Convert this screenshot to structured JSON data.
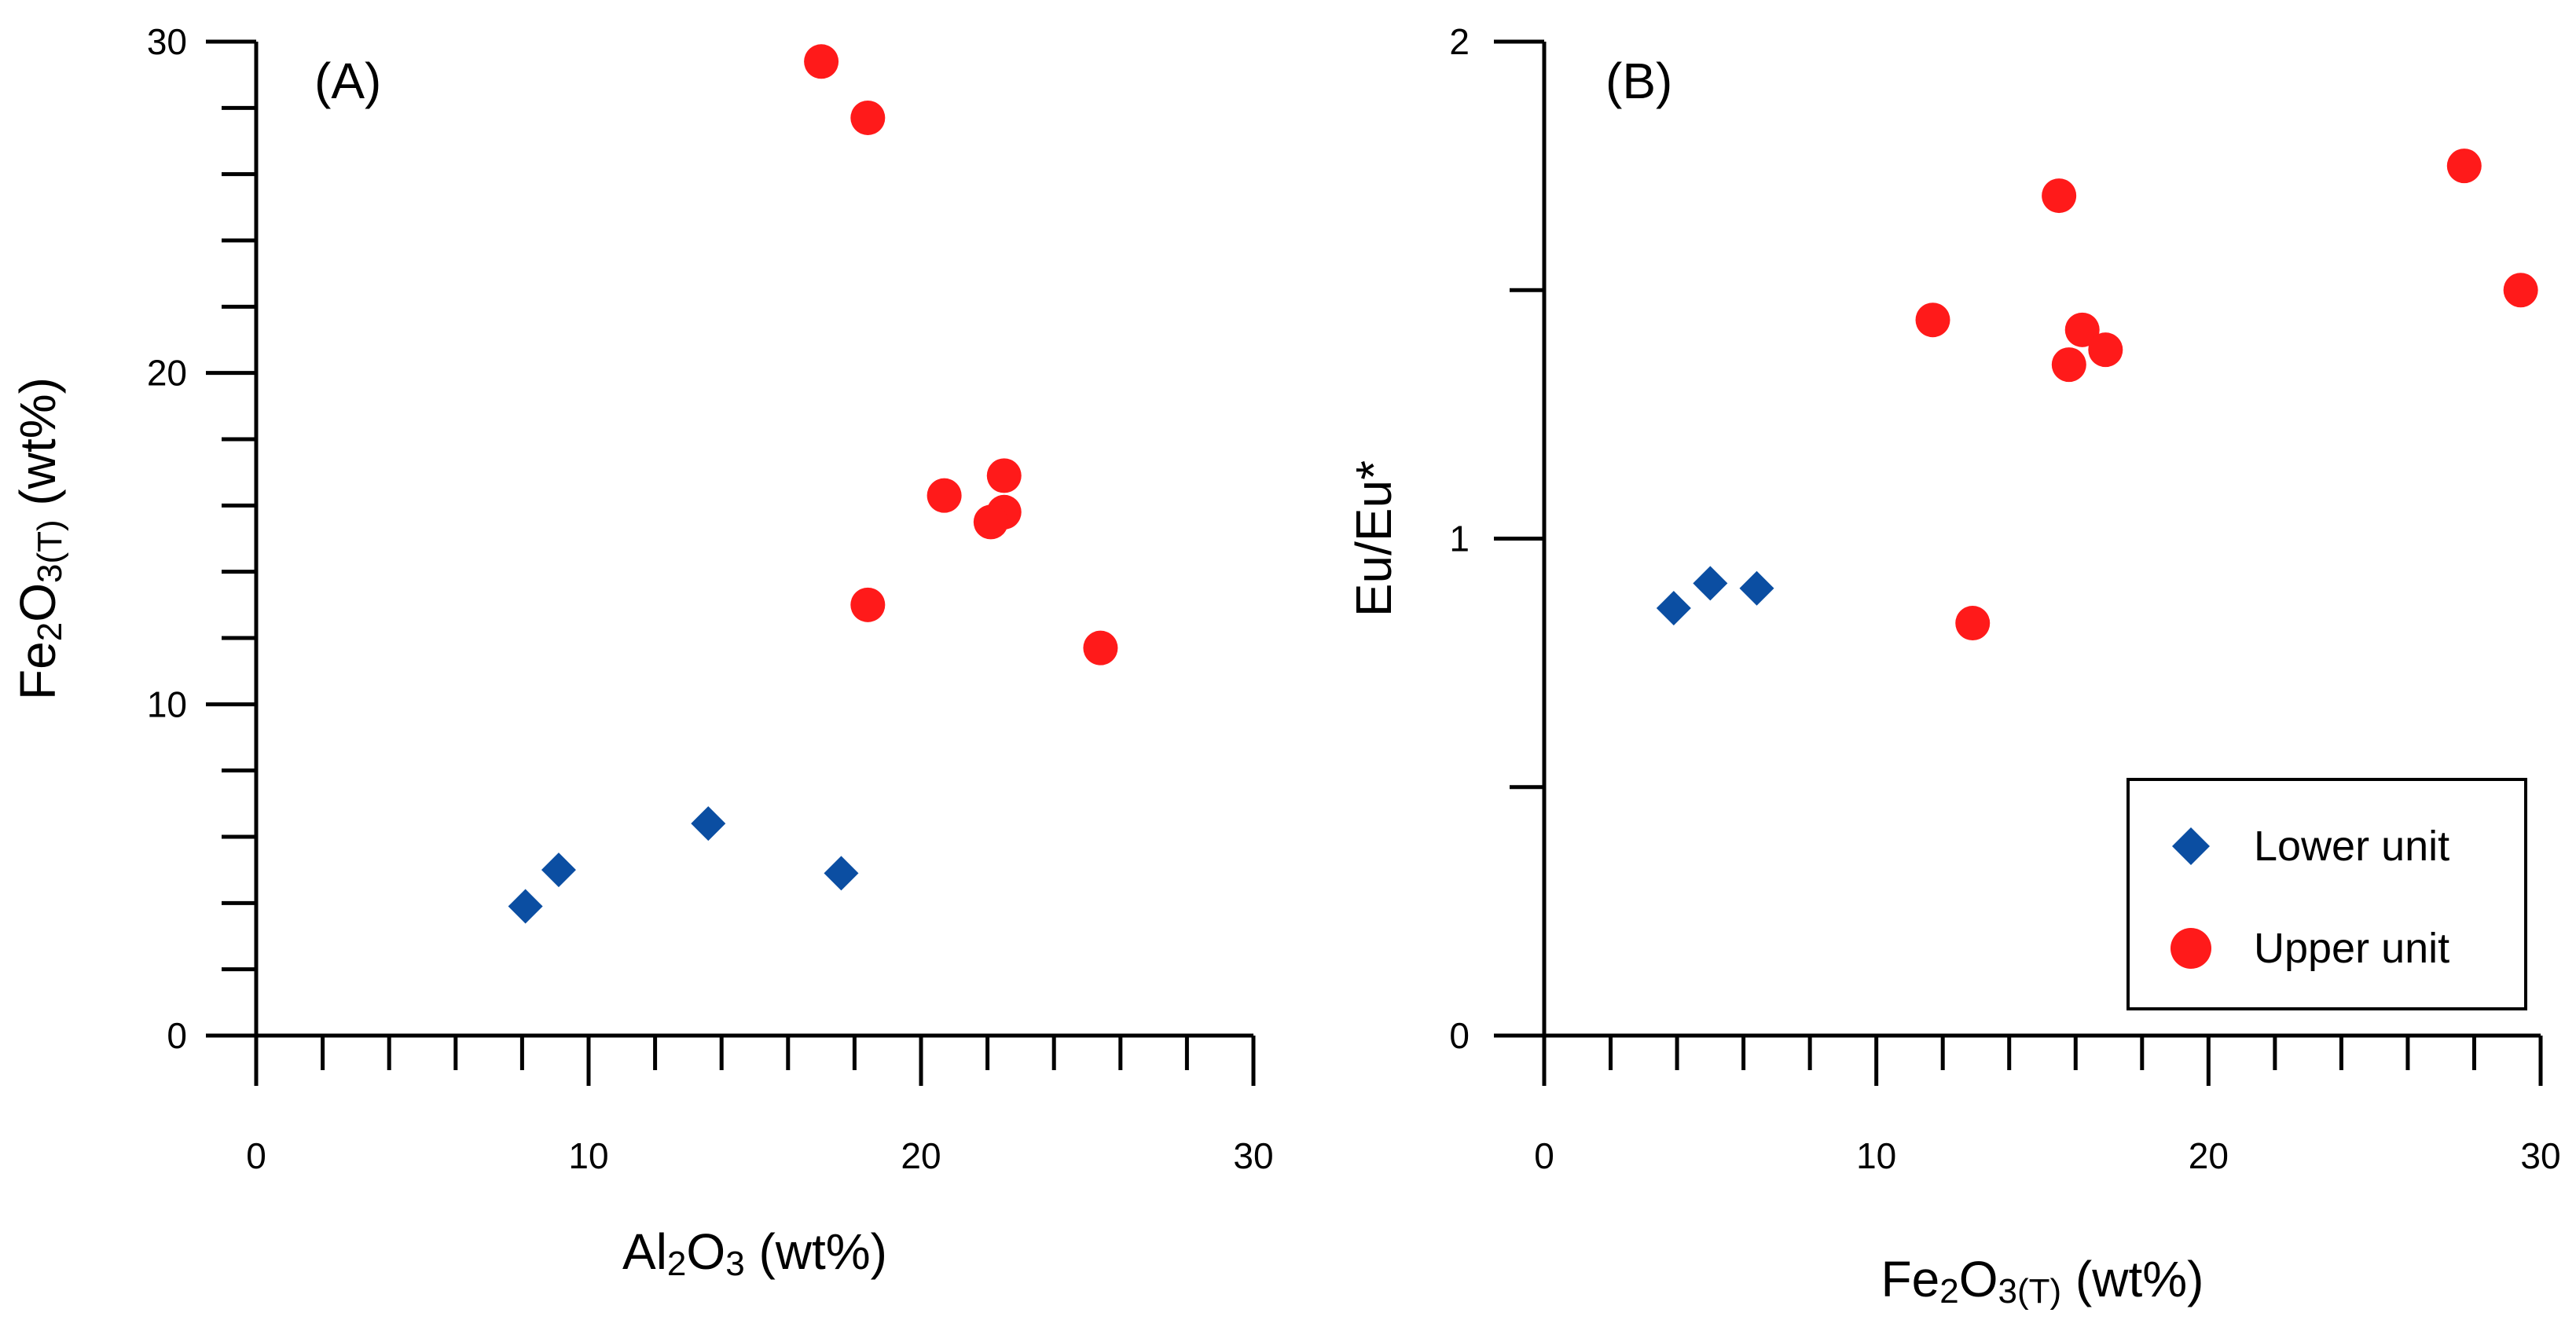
{
  "chart_data": [
    {
      "panel": "A",
      "type": "scatter",
      "panel_label": "(A)",
      "xlabel_parts": [
        "Al",
        "2",
        "O",
        "3",
        " (wt%)"
      ],
      "ylabel_parts": [
        "Fe",
        "2",
        "O",
        "3(T)",
        " (wt%)"
      ],
      "xlim": [
        0,
        30
      ],
      "ylim": [
        0,
        30
      ],
      "xticks": [
        0,
        10,
        20,
        30
      ],
      "yticks": [
        0,
        10,
        20,
        30
      ],
      "minor_step": 2,
      "series": [
        {
          "name": "Lower unit",
          "marker": "diamond",
          "color": "#0b4ea2",
          "points": [
            [
              8.1,
              3.9
            ],
            [
              9.1,
              5.0
            ],
            [
              13.6,
              6.4
            ],
            [
              17.6,
              4.9
            ]
          ]
        },
        {
          "name": "Upper unit",
          "marker": "circle",
          "color": "#ff1a1a",
          "points": [
            [
              17.0,
              29.4
            ],
            [
              18.4,
              27.7
            ],
            [
              20.7,
              16.3
            ],
            [
              22.5,
              16.9
            ],
            [
              22.5,
              15.8
            ],
            [
              22.1,
              15.5
            ],
            [
              18.4,
              13.0
            ],
            [
              25.4,
              11.7
            ]
          ]
        }
      ]
    },
    {
      "panel": "B",
      "type": "scatter",
      "panel_label": "(B)",
      "xlabel_parts": [
        "Fe",
        "2",
        "O",
        "3(T)",
        " (wt%)"
      ],
      "ylabel_parts": [
        "Eu/Eu*"
      ],
      "xlim": [
        0,
        30
      ],
      "ylim": [
        0,
        2
      ],
      "xticks": [
        0,
        10,
        20,
        30
      ],
      "yticks": [
        0,
        1,
        2
      ],
      "yminor": [
        0.5,
        1.5
      ],
      "minor_step": 2,
      "series": [
        {
          "name": "Lower unit",
          "marker": "diamond",
          "color": "#0b4ea2",
          "points": [
            [
              3.9,
              0.86
            ],
            [
              5.0,
              0.91
            ],
            [
              6.4,
              0.9
            ]
          ]
        },
        {
          "name": "Upper unit",
          "marker": "circle",
          "color": "#ff1a1a",
          "points": [
            [
              11.7,
              1.44
            ],
            [
              12.9,
              0.83
            ],
            [
              15.5,
              1.69
            ],
            [
              15.8,
              1.35
            ],
            [
              16.2,
              1.42
            ],
            [
              16.9,
              1.38
            ],
            [
              27.7,
              1.75
            ],
            [
              29.4,
              1.5
            ]
          ]
        }
      ],
      "legend": {
        "position": "lower-right",
        "entries": [
          {
            "label": "Lower unit",
            "marker": "diamond",
            "color": "#0b4ea2"
          },
          {
            "label": "Upper unit",
            "marker": "circle",
            "color": "#ff1a1a"
          }
        ]
      }
    }
  ]
}
